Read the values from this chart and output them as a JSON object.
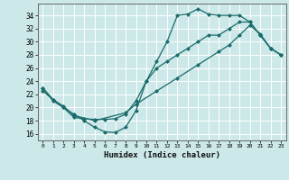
{
  "xlabel": "Humidex (Indice chaleur)",
  "bg_color": "#cce8e8",
  "grid_color": "#ffffff",
  "line_color": "#1a6b6b",
  "xlim": [
    -0.5,
    23.5
  ],
  "ylim": [
    15.0,
    35.8
  ],
  "xticks": [
    0,
    1,
    2,
    3,
    4,
    5,
    6,
    7,
    8,
    9,
    10,
    11,
    12,
    13,
    14,
    15,
    16,
    17,
    18,
    19,
    20,
    21,
    22,
    23
  ],
  "yticks": [
    16,
    18,
    20,
    22,
    24,
    26,
    28,
    30,
    32,
    34
  ],
  "line1_x": [
    0,
    1,
    2,
    3,
    4,
    5,
    6,
    7,
    8,
    9,
    10,
    11,
    12,
    13,
    14,
    15,
    16,
    17,
    18,
    19,
    20,
    21,
    22,
    23
  ],
  "line1_y": [
    23,
    21,
    20,
    19,
    18,
    17,
    16.3,
    16.2,
    17,
    19.5,
    24,
    27,
    30,
    34,
    34.2,
    35,
    34.2,
    34,
    34,
    34,
    33,
    31,
    29,
    28
  ],
  "line2_x": [
    0,
    1,
    2,
    3,
    4,
    5,
    6,
    7,
    8,
    9,
    10,
    11,
    12,
    13,
    14,
    15,
    16,
    17,
    18,
    19,
    20,
    21,
    22,
    23
  ],
  "line2_y": [
    23,
    21.2,
    20,
    18.5,
    18.3,
    18.2,
    18.2,
    18.3,
    19,
    21,
    24,
    26,
    27,
    28,
    29,
    30,
    31,
    31,
    32,
    33,
    33,
    31,
    29,
    28
  ],
  "line3_x": [
    0,
    1,
    2,
    3,
    5,
    8,
    9,
    11,
    13,
    15,
    17,
    18,
    19,
    20,
    21,
    22,
    23
  ],
  "line3_y": [
    22.5,
    21.2,
    20.2,
    18.8,
    18.0,
    19.2,
    20.5,
    22.5,
    24.5,
    26.5,
    28.5,
    29.5,
    31.0,
    32.5,
    31.2,
    29,
    28
  ],
  "marker_size": 2.5,
  "linewidth": 0.9
}
